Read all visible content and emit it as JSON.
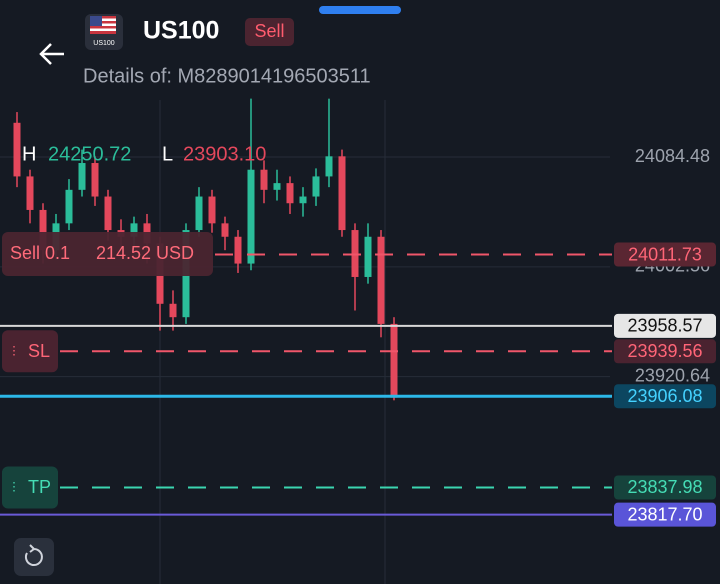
{
  "header": {
    "title": "US100",
    "side": "Sell",
    "details": "Details of: M8289014196503511"
  },
  "chart_data": {
    "type": "candlestick",
    "high_label": "H",
    "high_value": "24250.72",
    "low_label": "L",
    "low_value": "23903.10",
    "open": [
      24110,
      24070,
      24045,
      24015,
      24035,
      24060,
      24080,
      24055,
      24030,
      24025,
      24035,
      24020,
      23975,
      23965,
      24030,
      24055,
      24035,
      24025,
      24005,
      24075,
      24060,
      24065,
      24050,
      24055,
      24070,
      24085,
      24030,
      23995,
      24025,
      23960
    ],
    "high": [
      24118,
      24075,
      24050,
      24042,
      24068,
      24090,
      24085,
      24060,
      24038,
      24040,
      24042,
      24025,
      23985,
      24035,
      24062,
      24060,
      24040,
      24030,
      24128,
      24082,
      24075,
      24070,
      24062,
      24076,
      24128,
      24090,
      24035,
      24035,
      24030,
      23965
    ],
    "low": [
      24062,
      24035,
      24005,
      24008,
      24030,
      24055,
      24048,
      24022,
      24015,
      24018,
      24005,
      23955,
      23955,
      23960,
      24025,
      24028,
      24015,
      23998,
      24000,
      24050,
      24052,
      24042,
      24040,
      24048,
      24062,
      24025,
      23970,
      23990,
      23950,
      23903
    ],
    "close": [
      24070,
      24045,
      24015,
      24035,
      24060,
      24080,
      24055,
      24030,
      24025,
      24035,
      24020,
      23975,
      23965,
      24030,
      24055,
      24035,
      24025,
      24005,
      24075,
      24060,
      24065,
      24050,
      24055,
      24070,
      24085,
      24030,
      23995,
      24025,
      23960,
      23905
    ],
    "up_color": "#2bbd9a",
    "down_color": "#e4485c",
    "ylim": [
      23766,
      24127
    ],
    "yticks": [
      24084.48,
      24002.56,
      23920.64
    ],
    "grid": true,
    "position": {
      "label": "Sell 0.1",
      "profit": "214.52 USD"
    },
    "levels": [
      {
        "price": 24011.73,
        "color": "#f0566a",
        "bg": "#5a2632",
        "text": "#ff6577",
        "dash": true
      },
      {
        "price": 23958.57,
        "color": "#d8d8d8",
        "bg": "#e6e6e6",
        "text": "#111111",
        "dash": false
      },
      {
        "price": 23939.56,
        "color": "#f0566a",
        "bg": "#4a2330",
        "text": "#ff6577",
        "dash": true,
        "tag": "SL"
      },
      {
        "price": 23906.08,
        "color": "#2cb8e8",
        "bg": "#0c4660",
        "text": "#45d2ff",
        "dash": false,
        "width": 3
      },
      {
        "price": 23837.98,
        "color": "#3bd6b0",
        "bg": "#16433c",
        "text": "#45dcb5",
        "dash": true,
        "tag": "TP"
      },
      {
        "price": {
          "value": 23817.7,
          "label": "23817.70"
        },
        "color": "#6a5ad8",
        "bg": "#5a55d8",
        "text": "#ffffff",
        "dash": false
      }
    ]
  }
}
